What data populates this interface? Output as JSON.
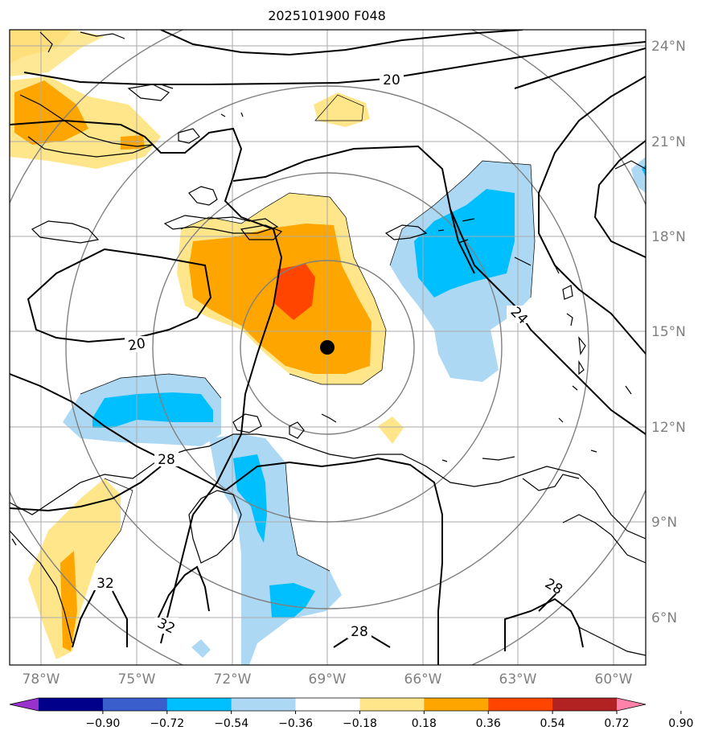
{
  "title": "2025101900 F048",
  "lat_ticks": [
    "24°N",
    "21°N",
    "18°N",
    "15°N",
    "12°N",
    "9°N",
    "6°N"
  ],
  "lon_ticks": [
    "78°W",
    "75°W",
    "72°W",
    "69°W",
    "66°W",
    "63°W",
    "60°W"
  ],
  "contour_labels": [
    "20",
    "20",
    "24",
    "28",
    "32",
    "32",
    "28",
    "28"
  ],
  "colorbar": {
    "labels": [
      "−0.90",
      "−0.72",
      "−0.54",
      "−0.36",
      "−0.18",
      "0.18",
      "0.36",
      "0.54",
      "0.72",
      "0.90"
    ],
    "colors": [
      "#9932cc",
      "#00008b",
      "#3a5fcd",
      "#00bfff",
      "#add8f4",
      "#ffffff",
      "#ffe68a",
      "#ffa500",
      "#ff4500",
      "#b22222",
      "#ff82ab"
    ]
  },
  "center_marker": "storm-center-dot"
}
